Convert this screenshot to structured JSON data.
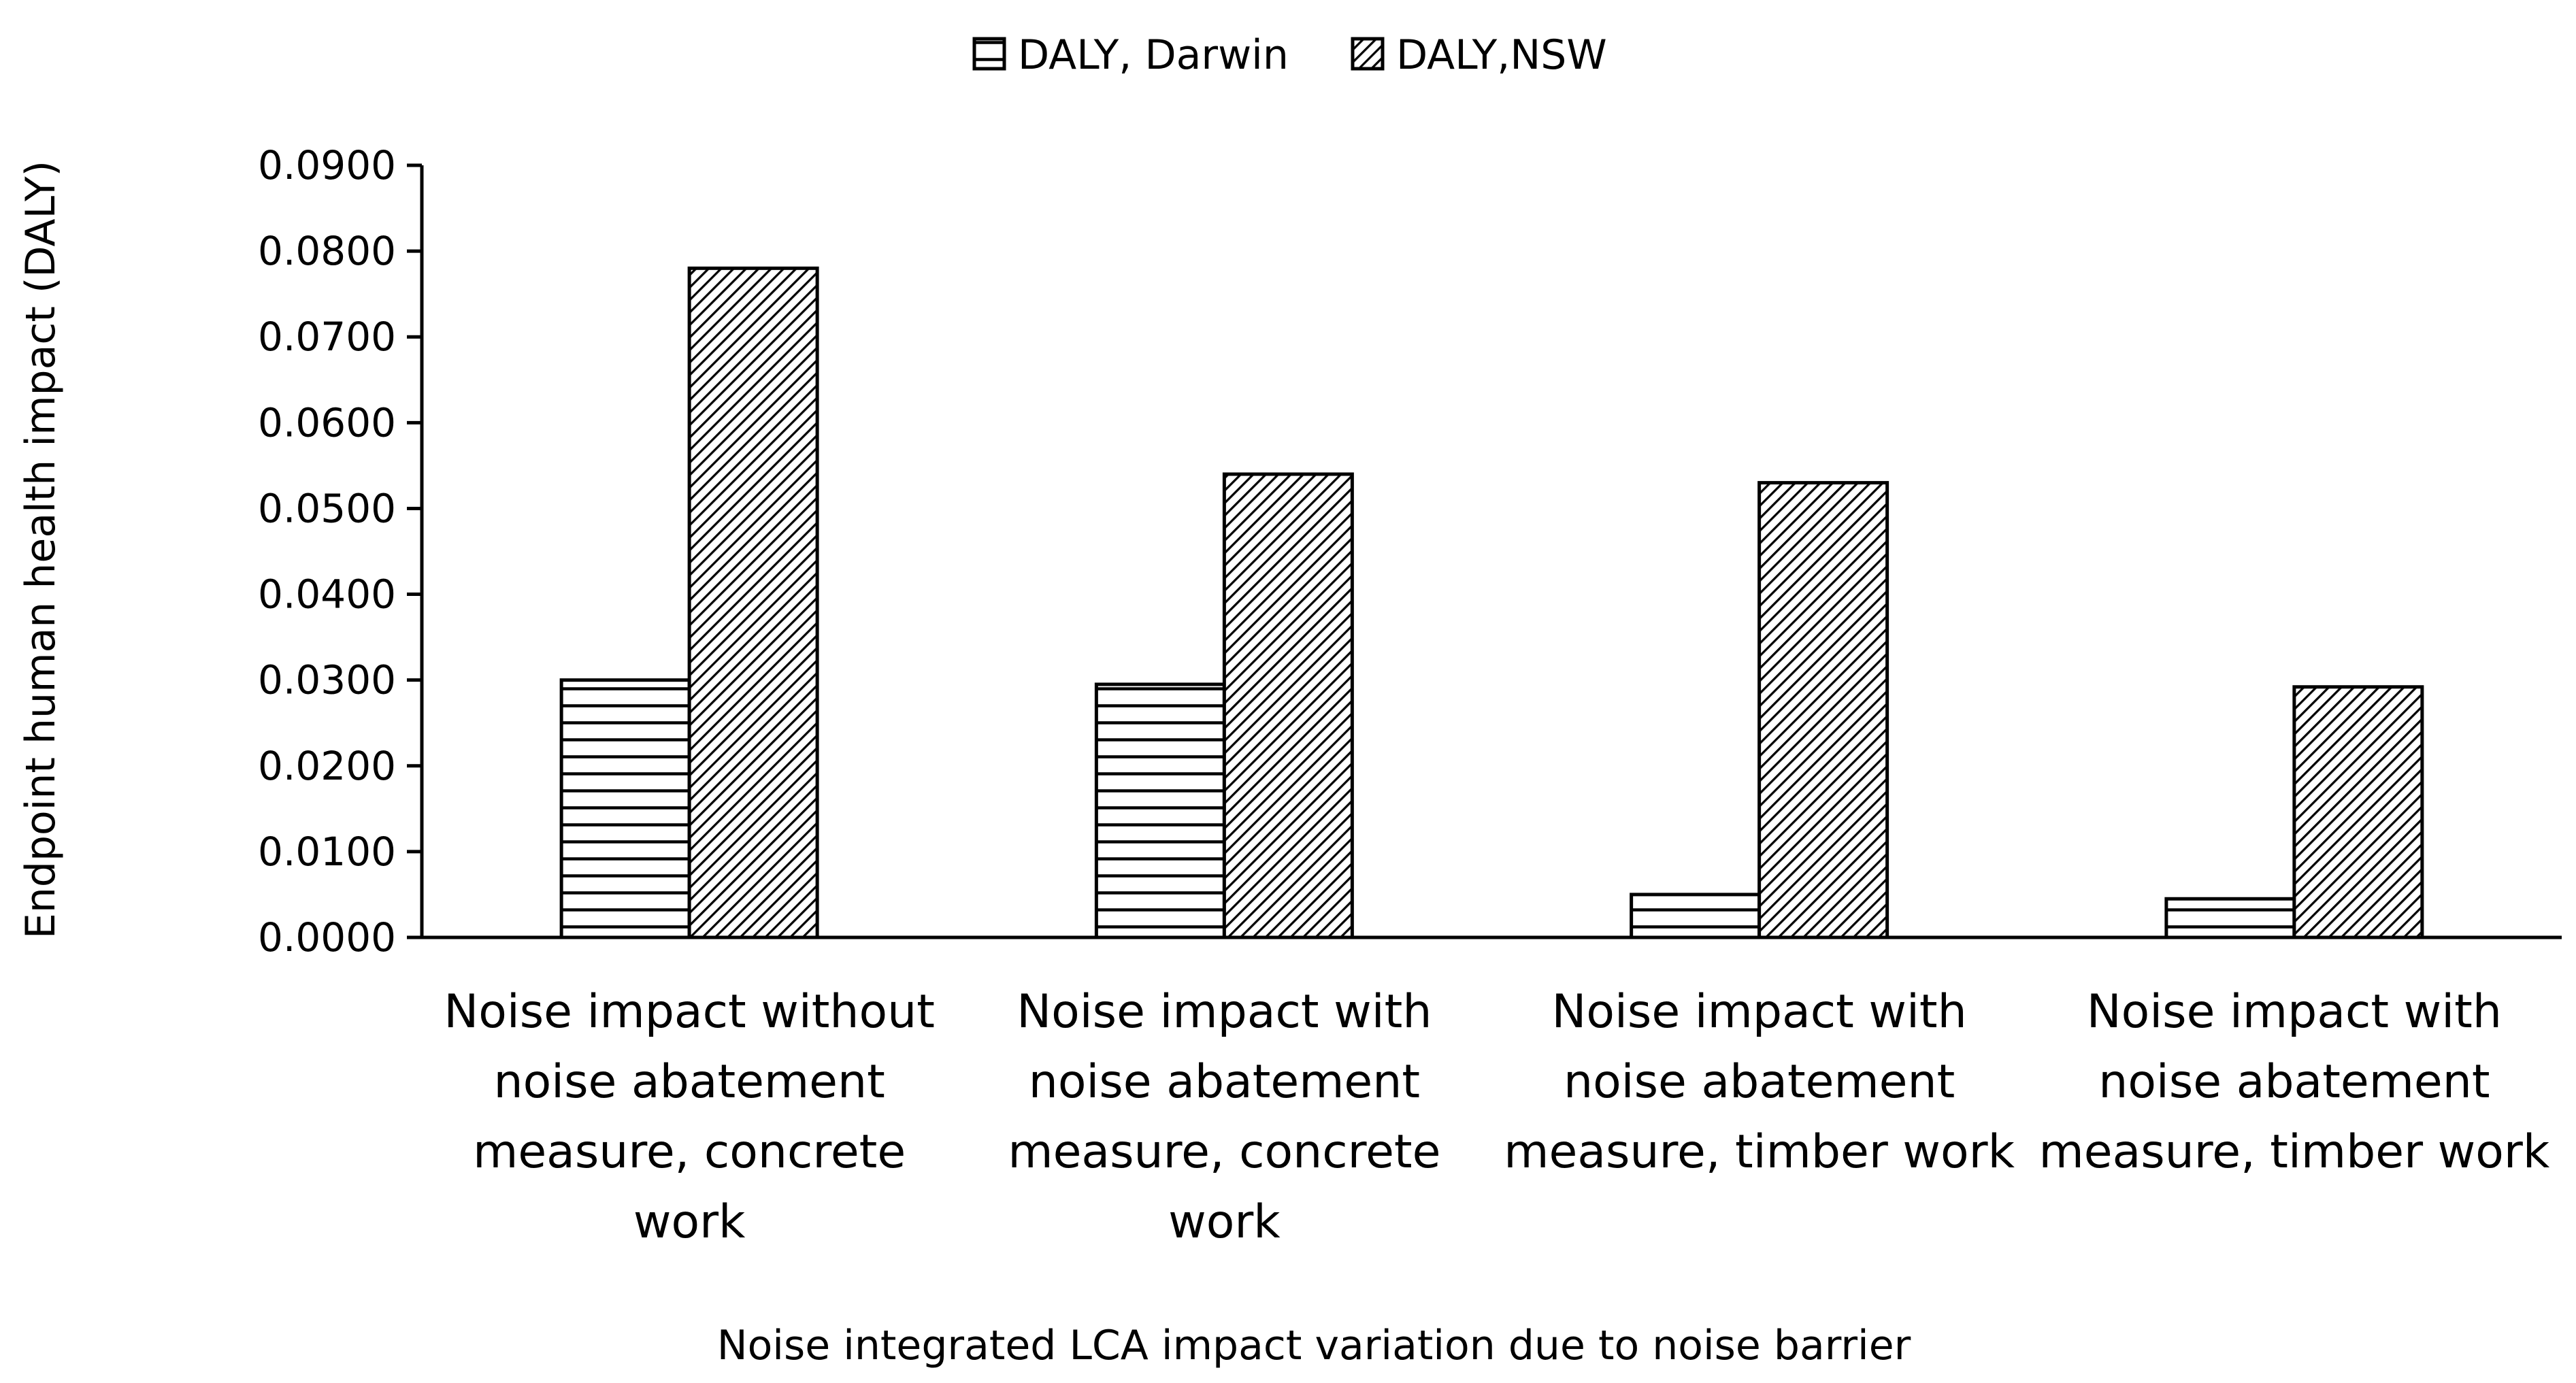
{
  "chart_data": {
    "type": "bar",
    "title": "",
    "xlabel": "Noise integrated LCA impact variation due to noise barrier",
    "ylabel": "Endpoint  human health impact (DALY)",
    "ylim": [
      0,
      0.09
    ],
    "yticks": [
      "0.0000",
      "0.0100",
      "0.0200",
      "0.0300",
      "0.0400",
      "0.0500",
      "0.0600",
      "0.0700",
      "0.0800",
      "0.0900"
    ],
    "ytick_values": [
      0,
      0.01,
      0.02,
      0.03,
      0.04,
      0.05,
      0.06,
      0.07,
      0.08,
      0.09
    ],
    "grid": false,
    "legend_position": "top-center",
    "categories": [
      [
        "Noise impact without",
        "noise abatement",
        "measure, concrete",
        "work"
      ],
      [
        "Noise impact with",
        "noise abatement",
        "measure, concrete",
        "work"
      ],
      [
        "Noise impact with",
        "noise abatement",
        "measure, timber work"
      ],
      [
        "Noise impact with",
        "noise abatement",
        "measure, timber work"
      ]
    ],
    "series": [
      {
        "name": "DALY, Darwin",
        "pattern": "horizontal-lines",
        "values": [
          0.03,
          0.0295,
          0.005,
          0.0045
        ]
      },
      {
        "name": "DALY,NSW",
        "pattern": "diagonal-hatch",
        "values": [
          0.078,
          0.054,
          0.053,
          0.0292
        ]
      }
    ],
    "colors": {
      "stroke": "#000000",
      "fill": "#ffffff"
    }
  }
}
